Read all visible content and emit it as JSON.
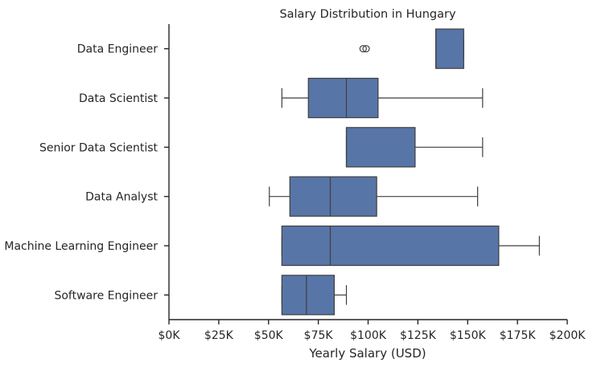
{
  "chart_data": {
    "type": "boxplot",
    "orientation": "horizontal",
    "title": "Salary Distribution in Hungary",
    "xlabel": "Yearly Salary (USD)",
    "ylabel": "",
    "xlim": [
      0,
      200000
    ],
    "xticks": [
      0,
      25000,
      50000,
      75000,
      100000,
      125000,
      150000,
      175000,
      200000
    ],
    "xtick_labels": [
      "$0K",
      "$25K",
      "$50K",
      "$75K",
      "$100K",
      "$125K",
      "$150K",
      "$175K",
      "$200K"
    ],
    "grid": false,
    "color": "#5875a7",
    "categories": [
      "Data Engineer",
      "Data Scientist",
      "Senior Data Scientist",
      "Data Analyst",
      "Machine Learning Engineer",
      "Software Engineer"
    ],
    "boxes": [
      {
        "whislo": 134000,
        "q1": 134000,
        "med": 134000,
        "q3": 148000,
        "whishi": 148000,
        "fliers": [
          97500,
          99000
        ]
      },
      {
        "whislo": 56700,
        "q1": 70000,
        "med": 89100,
        "q3": 105000,
        "whishi": 157500,
        "fliers": []
      },
      {
        "whislo": 89100,
        "q1": 89100,
        "med": 89100,
        "q3": 123600,
        "whishi": 157500,
        "fliers": []
      },
      {
        "whislo": 50400,
        "q1": 60700,
        "med": 81000,
        "q3": 104300,
        "whishi": 155000,
        "fliers": []
      },
      {
        "whislo": 56700,
        "q1": 56700,
        "med": 81000,
        "q3": 165600,
        "whishi": 186000,
        "fliers": []
      },
      {
        "whislo": 56700,
        "q1": 56700,
        "med": 69000,
        "q3": 83000,
        "whishi": 89100,
        "fliers": []
      }
    ]
  }
}
